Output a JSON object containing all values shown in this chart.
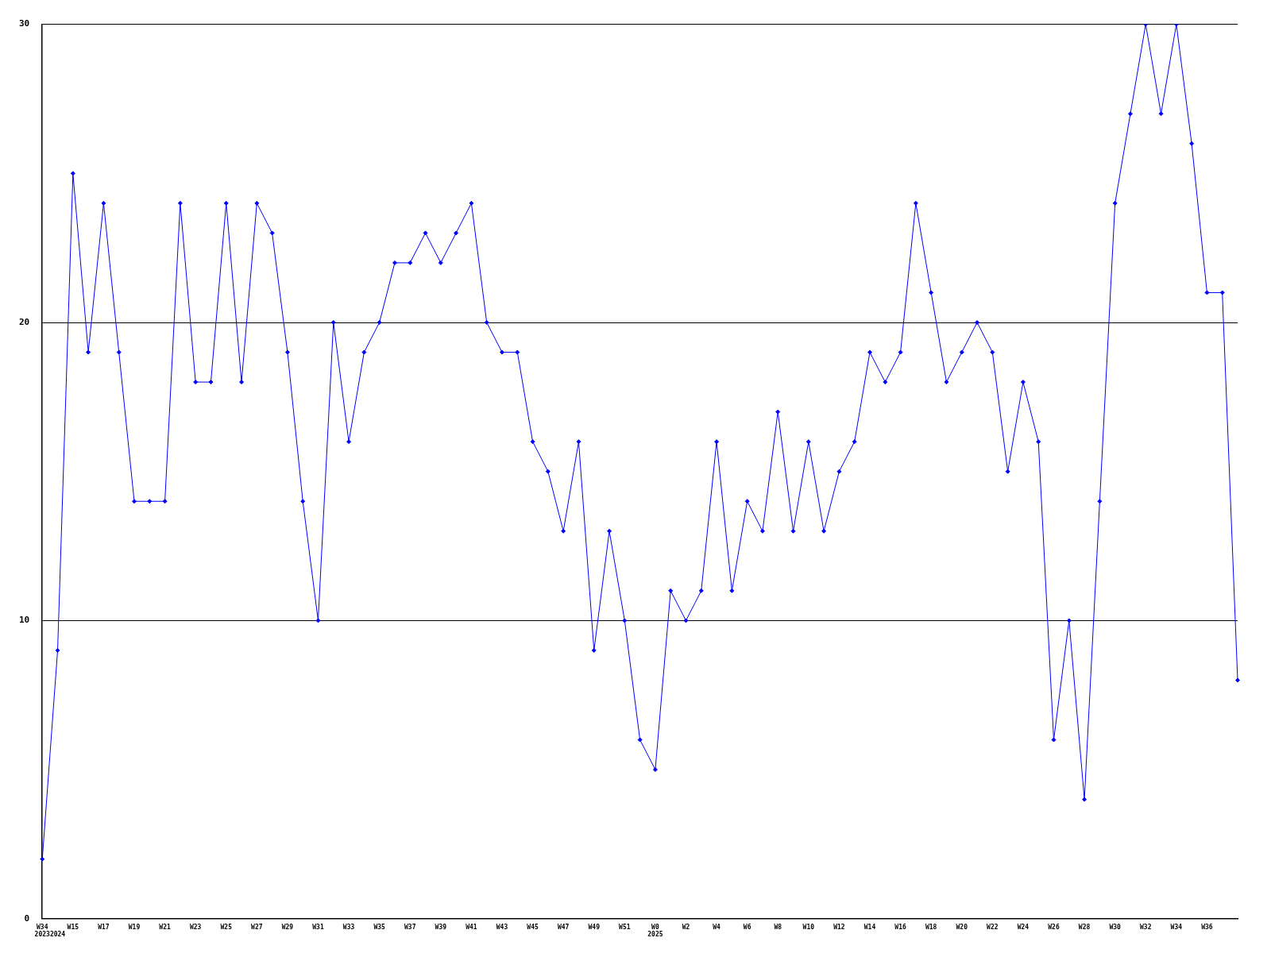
{
  "chart_data": {
    "type": "line",
    "categories": [
      "W34\n2023",
      "\n2024",
      "W15",
      null,
      "W17",
      null,
      "W19",
      null,
      "W21",
      null,
      "W23",
      null,
      "W25",
      null,
      "W27",
      null,
      "W29",
      null,
      "W31",
      null,
      "W33",
      null,
      "W35",
      null,
      "W37",
      null,
      "W39",
      null,
      "W41",
      null,
      "W43",
      null,
      "W45",
      null,
      "W47",
      null,
      "W49",
      null,
      "W51",
      null,
      "W0\n2025",
      null,
      "W2",
      null,
      "W4",
      null,
      "W6",
      null,
      "W8",
      null,
      "W10",
      null,
      "W12",
      null,
      "W14",
      null,
      "W16",
      null,
      "W18",
      null,
      "W20",
      null,
      "W22",
      null,
      "W24",
      null,
      "W26",
      null,
      "W28",
      null,
      "W30",
      null,
      "W32",
      null,
      "W34",
      null,
      "W36",
      null,
      null
    ],
    "series": [
      {
        "color": "#0000ff",
        "values": [
          2,
          9,
          25,
          19,
          24,
          19,
          14,
          14,
          14,
          24,
          18,
          18,
          24,
          18,
          24,
          23,
          19,
          14,
          10,
          20,
          16,
          19,
          20,
          22,
          22,
          23,
          22,
          23,
          24,
          20,
          19,
          19,
          16,
          15,
          13,
          16,
          9,
          13,
          10,
          6,
          5,
          11,
          10,
          11,
          16,
          11,
          14,
          13,
          17,
          13,
          16,
          13,
          15,
          16,
          19,
          18,
          19,
          24,
          21,
          18,
          19,
          20,
          19,
          15,
          18,
          16,
          6,
          10,
          4,
          14,
          24,
          27,
          30,
          27,
          30,
          26,
          21,
          21,
          8
        ]
      }
    ],
    "ylim": [
      0,
      30
    ],
    "yticks": [
      0,
      10,
      20,
      30
    ],
    "grid": "y",
    "marker": "diamond",
    "line_style": "solid",
    "legend": false
  }
}
